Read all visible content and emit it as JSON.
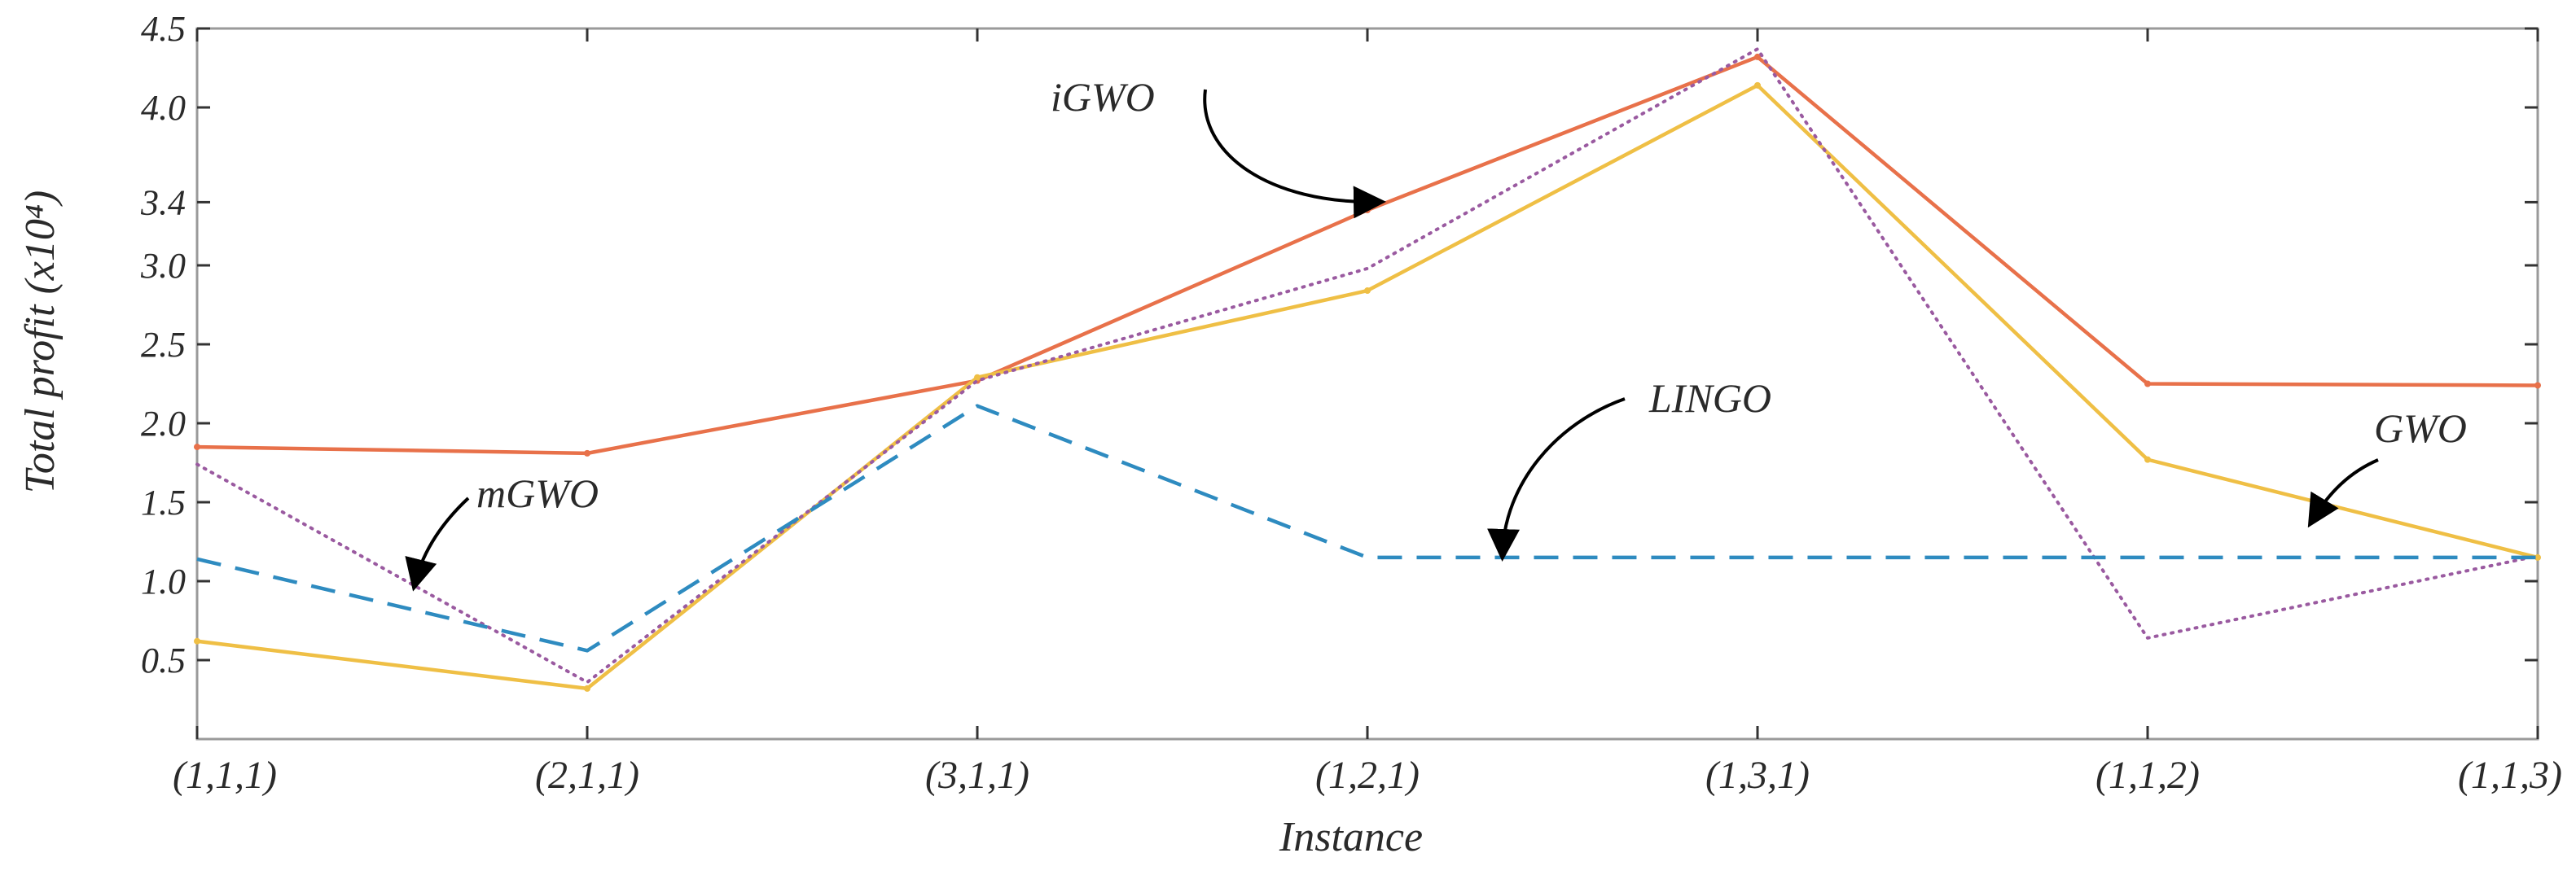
{
  "chart_data": {
    "type": "line",
    "title": "",
    "xlabel": "Instance",
    "ylabel": "Total profit (x10⁴)",
    "categories": [
      "(1,1,1)",
      "(2,1,1)",
      "(3,1,1)",
      "(1,2,1)",
      "(1,3,1)",
      "(1,1,2)",
      "(1,1,3)"
    ],
    "yticks": [
      "0.5",
      "1.0",
      "1.5",
      "2.0",
      "2.5",
      "3.0",
      "3.4",
      "4.0",
      "4.5"
    ],
    "ylim": [
      0,
      4.5
    ],
    "series": [
      {
        "name": "iGWO",
        "color": "#e8714a",
        "dash": "solid",
        "values": [
          1.85,
          1.81,
          2.27,
          3.35,
          4.32,
          2.25,
          2.24
        ]
      },
      {
        "name": "GWO",
        "color": "#efbf45",
        "dash": "solid",
        "values": [
          0.62,
          0.32,
          2.29,
          2.84,
          4.14,
          1.77,
          1.15
        ]
      },
      {
        "name": "mGWO",
        "color": "#9a5aa0",
        "dash": "dotted",
        "values": [
          1.74,
          0.36,
          2.27,
          2.98,
          4.37,
          0.64,
          1.16
        ]
      },
      {
        "name": "LINGO",
        "color": "#2e8bc0",
        "dash": "dashed",
        "values": [
          1.14,
          0.56,
          2.11,
          1.15,
          1.15,
          1.15,
          1.15
        ]
      }
    ],
    "annotations": [
      {
        "text": "iGWO",
        "series": "iGWO"
      },
      {
        "text": "LINGO",
        "series": "LINGO"
      },
      {
        "text": "mGWO",
        "series": "mGWO"
      },
      {
        "text": "GWO",
        "series": "GWO"
      }
    ]
  }
}
